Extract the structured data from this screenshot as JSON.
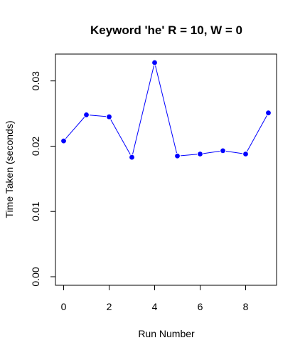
{
  "chart_data": {
    "type": "line",
    "title": "Keyword 'he' R = 10, W = 0",
    "xlabel": "Run Number",
    "ylabel": "Time Taken (seconds)",
    "x": [
      0,
      1,
      2,
      3,
      4,
      5,
      6,
      7,
      8,
      9
    ],
    "series": [
      {
        "values": [
          0.0208,
          0.0248,
          0.0245,
          0.0183,
          0.0328,
          0.0185,
          0.0188,
          0.0193,
          0.0188,
          0.0251
        ],
        "color": "#0000ff",
        "marker": "filled-circle"
      }
    ],
    "xlim": [
      -0.36,
      9.36
    ],
    "ylim": [
      -0.00131,
      0.03411
    ],
    "xticks": [
      0,
      2,
      4,
      6,
      8
    ],
    "xtick_labels": [
      "0",
      "2",
      "4",
      "6",
      "8"
    ],
    "yticks": [
      0,
      0.01,
      0.02,
      0.03
    ],
    "ytick_labels": [
      "0.00",
      "0.01",
      "0.02",
      "0.03"
    ],
    "grid": false,
    "legend": "none"
  }
}
